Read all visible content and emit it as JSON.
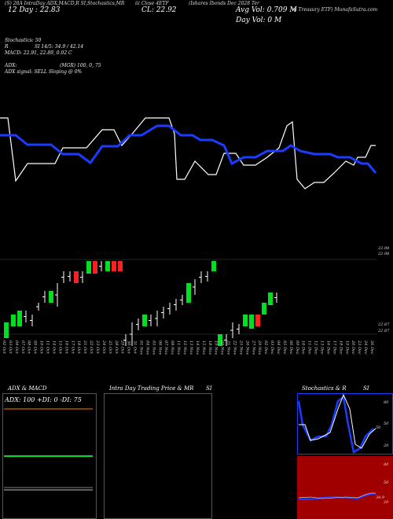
{
  "header": {
    "top_line": "(S) 28A IntraDay ADX,MACD,R  SI,Stochastics,MR",
    "ticker_label": "iii Close 4ETF",
    "title_fund": "(Ishares Ibonds Dec 2028 Ter",
    "title_fund_2": "m Treasury ETF) MunafaSutra.com",
    "day_change": "12 Day : 22.83",
    "close_label": "CL: 22.92",
    "avg_vol": "Avg Vol: 0.709 M",
    "day_vol": "Day Vol: 0  M"
  },
  "indicators": {
    "stochastics": "Stochastics: 50",
    "r": "R",
    "si": "SI 14/5: 34.9 / 42.14",
    "macd": "MACD: 22.91, 22.89, 0.02  C",
    "adx": "ADX:",
    "mgr": "(MGR) 100, 0, 75",
    "adx_signal": "ADX  signal: SELL  Sloping @ 0%"
  },
  "price_axis": {
    "top": "22.98",
    "top2": "22.98",
    "bottom": "22.87",
    "bottom2": "22.87"
  },
  "date_labels": [
    "02 Oct",
    "03 Oct",
    "04 Oct",
    "07 Oct",
    "08 Oct",
    "09 Oct",
    "10 Oct",
    "11 Oct",
    "14 Oct",
    "15 Oct",
    "16 Oct",
    "17 Oct",
    "18 Oct",
    "21 Oct",
    "22 Oct",
    "23 Oct",
    "24 Oct",
    "25 Oct",
    "28 Oct",
    "29 Oct",
    "30 Oct",
    "31 Oct",
    "01 Nov",
    "04 Nov",
    "05 Nov",
    "06 Nov",
    "07 Nov",
    "08 Nov",
    "11 Nov",
    "12 Nov",
    "13 Nov",
    "14 Nov",
    "15 Nov",
    "18 Nov",
    "19 Nov",
    "20 Nov",
    "21 Nov",
    "22 Nov",
    "25 Nov",
    "26 Nov",
    "27 Nov",
    "29 Nov",
    "02 Dec",
    "03 Dec",
    "04 Dec",
    "05 Dec",
    "06 Dec",
    "09 Dec",
    "10 Dec",
    "11 Dec",
    "12 Dec",
    "13 Dec",
    "16 Dec",
    "17 Dec",
    "18 Dec",
    "19 Dec",
    "20 Dec",
    "23 Dec",
    "24 Dec",
    "26 Dec"
  ],
  "panels": {
    "adx_title": "ADX  & MACD",
    "adx_values": "ADX: 100  +DI: 0  -DI: 75",
    "intraday_title": "Intra  Day Trading Price  & MR",
    "intraday_si": "SI",
    "stoch_title": "Stochastics & R",
    "stoch_si": "SI",
    "stoch_ticks": [
      "80",
      "50",
      "20"
    ],
    "stoch_value": "50",
    "rsi_ticks": [
      "80",
      "50",
      "20"
    ],
    "rsi_value": "34.9"
  },
  "colors": {
    "blue": "#1a3cff",
    "green": "#00e020",
    "red": "#ff2020",
    "orange": "#ff7a00",
    "darkred": "#a00000"
  }
}
